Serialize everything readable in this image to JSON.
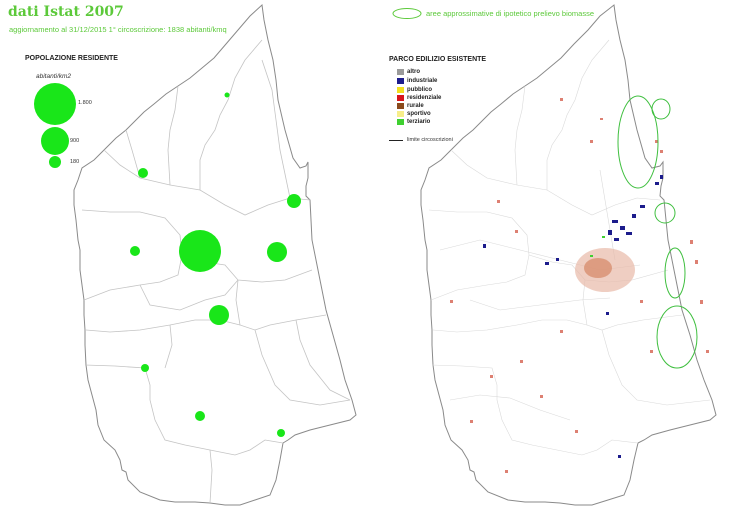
{
  "header": {
    "title": "dati Istat 2007",
    "subtitle": "aggiornamento al 31/12/2015 1° circoscrizione: 1838 abitanti/kmq"
  },
  "population_legend": {
    "heading": "POPOLAZIONE RESIDENTE",
    "unit": "abitanti/km2",
    "sizes": [
      "1.800",
      "900",
      "180"
    ]
  },
  "biomass_legend": {
    "label": "aree approssimative di ipotetico prelievo biomasse"
  },
  "building_legend": {
    "heading": "PARCO EDILIZIO ESISTENTE",
    "categories": [
      {
        "label": "altro",
        "color": "#9a9a9a"
      },
      {
        "label": "industriale",
        "color": "#1c1c8c"
      },
      {
        "label": "pubblico",
        "color": "#f2e020"
      },
      {
        "label": "residenziale",
        "color": "#d8141c"
      },
      {
        "label": "rurale",
        "color": "#8b4a1c"
      },
      {
        "label": "sportivo",
        "color": "#f7ee8a"
      },
      {
        "label": "terziario",
        "color": "#3fd030"
      }
    ],
    "boundary_label": "limite circoscrizioni"
  },
  "colors": {
    "accent_green": "#5cc93a",
    "bubble_green": "#19e619",
    "boundary": "#8a8a8a"
  }
}
